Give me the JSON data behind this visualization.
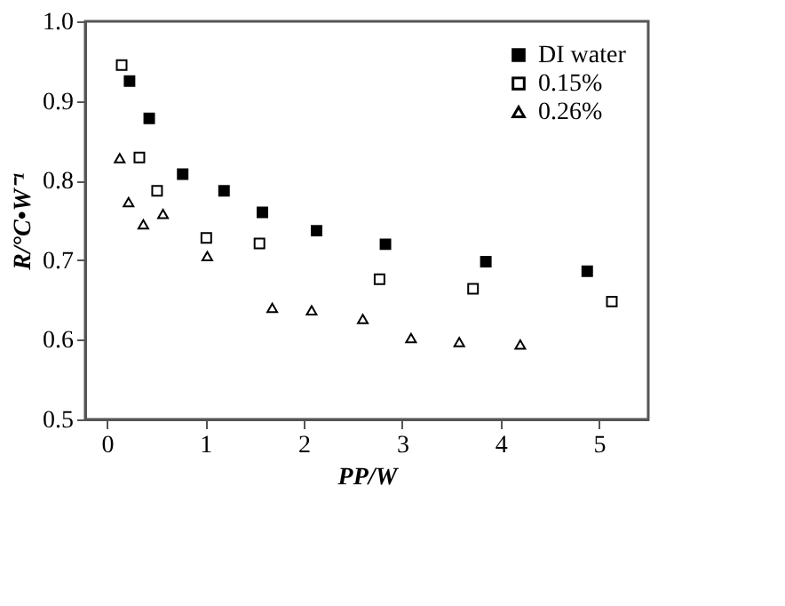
{
  "chart_data": {
    "type": "scatter",
    "xlabel": "PP/W",
    "ylabel": "R/°C•W⁻¹",
    "xlim": [
      -0.22,
      5.5
    ],
    "ylim": [
      0.5,
      1.0
    ],
    "xticks": [
      0,
      1,
      2,
      3,
      4,
      5
    ],
    "yticks": [
      0.5,
      0.6,
      0.7,
      0.8,
      0.9,
      {
        "value": 1.0,
        "label": "1.0"
      }
    ],
    "grid": false,
    "legend": "top right",
    "series": [
      {
        "name": "DI water",
        "color": "#000000",
        "marker": "square",
        "x": [
          0.23,
          0.43,
          0.77,
          1.19,
          1.58,
          2.13,
          2.83,
          3.85,
          4.88
        ],
        "values": [
          0.925,
          0.878,
          0.808,
          0.787,
          0.76,
          0.737,
          0.72,
          0.698,
          0.686
        ]
      },
      {
        "name": "0.15%",
        "color": "#000000",
        "marker": "square-open",
        "x": [
          0.15,
          0.33,
          0.51,
          1.01,
          1.55,
          2.77,
          3.72,
          5.13
        ],
        "values": [
          0.945,
          0.829,
          0.787,
          0.728,
          0.721,
          0.676,
          0.664,
          0.648
        ]
      },
      {
        "name": "0.26%",
        "color": "#000000",
        "marker": "triangle-open",
        "x": [
          0.13,
          0.22,
          0.37,
          0.57,
          1.02,
          1.68,
          2.08,
          2.6,
          3.09,
          3.58,
          4.2
        ],
        "values": [
          0.828,
          0.773,
          0.745,
          0.758,
          0.705,
          0.64,
          0.637,
          0.626,
          0.602,
          0.597,
          0.594
        ]
      }
    ]
  }
}
